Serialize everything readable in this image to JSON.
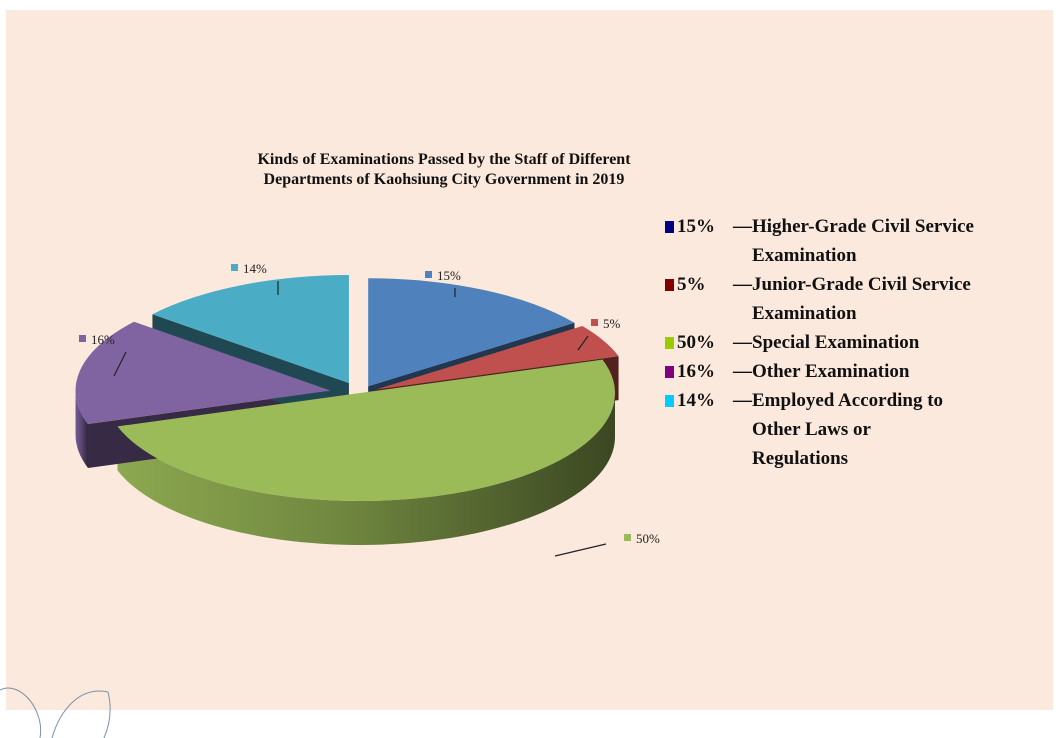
{
  "chart_data": {
    "type": "pie",
    "title": [
      "Kinds of Examinations Passed by the Staff of Different",
      "Departments of Kaohsiung City Government in 2019"
    ],
    "categories": [
      "Higher-Grade Civil Service Examination",
      "Junior-Grade Civil Service Examination",
      "Special Examination",
      "Other Examination",
      "Employed According to Other Laws or Regulations"
    ],
    "values": [
      15,
      5,
      50,
      16,
      14
    ],
    "slice_labels": [
      "15%",
      "5%",
      "50%",
      "16%",
      "14%"
    ],
    "slice_colors": [
      "#4f81bd",
      "#c0504d",
      "#9bbb59",
      "#8064a2",
      "#4bacc6"
    ],
    "legend_colors": [
      "#000080",
      "#800000",
      "#99cc00",
      "#800080",
      "#00ccff"
    ],
    "legend": [
      {
        "pct": "15%",
        "dash": "—",
        "lines": [
          "Higher-Grade Civil Service",
          "Examination"
        ]
      },
      {
        "pct": "5%",
        "dash": "—",
        "lines": [
          "Junior-Grade Civil Service",
          "Examination"
        ]
      },
      {
        "pct": "50%",
        "dash": "—",
        "lines": [
          "Special Examination"
        ]
      },
      {
        "pct": "16%",
        "dash": "—",
        "lines": [
          "Other Examination"
        ]
      },
      {
        "pct": "14%",
        "dash": "—",
        "lines": [
          "Employed According to",
          "Other Laws or",
          "Regulations"
        ]
      }
    ],
    "legend_placement": "right",
    "exploded": true,
    "three_d": true
  }
}
